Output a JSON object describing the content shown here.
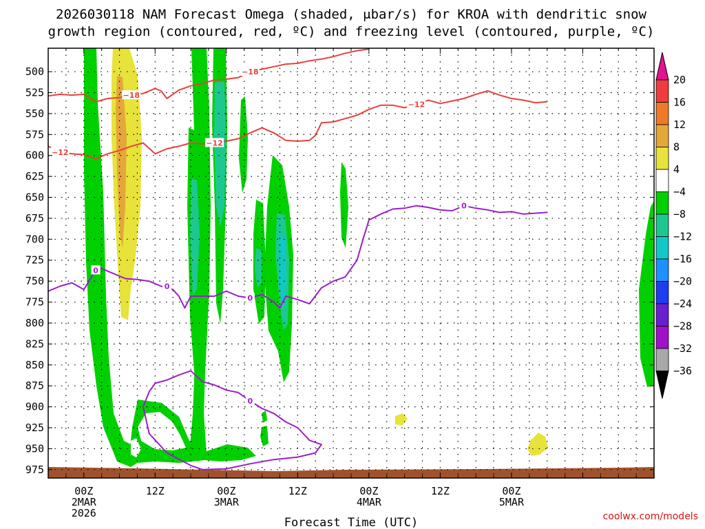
{
  "chart_data": {
    "type": "heatmap",
    "title_line1": "2026030118 NAM Forecast Omega (shaded, μbar/s) for KROA with dendritic snow",
    "title_line2": "growth region (contoured, red, ºC) and freezing level (contoured, purple, ºC)",
    "xlabel": "Forecast Time (UTC)",
    "credit": "coolwx.com/models",
    "x_range_hours": [
      18,
      120
    ],
    "y_range_hpa": [
      472,
      985
    ],
    "y_ticks": [
      500,
      525,
      550,
      575,
      600,
      625,
      650,
      675,
      700,
      725,
      750,
      775,
      800,
      825,
      850,
      875,
      900,
      925,
      950,
      975
    ],
    "x_ticks": [
      {
        "hour": 24,
        "lines": [
          "00Z",
          "2MAR",
          "2026"
        ]
      },
      {
        "hour": 36,
        "lines": [
          "12Z"
        ]
      },
      {
        "hour": 48,
        "lines": [
          "00Z",
          "3MAR"
        ]
      },
      {
        "hour": 60,
        "lines": [
          "12Z"
        ]
      },
      {
        "hour": 72,
        "lines": [
          "00Z",
          "4MAR"
        ]
      },
      {
        "hour": 84,
        "lines": [
          "12Z"
        ]
      },
      {
        "hour": 96,
        "lines": [
          "00Z",
          "5MAR"
        ]
      }
    ],
    "colorbar_labels": [
      "20",
      "16",
      "12",
      "8",
      "4",
      "−4",
      "−8",
      "−12",
      "−16",
      "−20",
      "−24",
      "−28",
      "−32",
      "−36"
    ],
    "colorbar_colors": [
      "#f03c3c",
      "#ee7a28",
      "#e5a63a",
      "#e7e33a",
      "#ffffff",
      "#00d000",
      "#1cc890",
      "#10c8c8",
      "#1e90ff",
      "#1e3cf0",
      "#6a1ed0",
      "#a010c8",
      "#a8a8a8"
    ],
    "contours": [
      {
        "name": "dgz-upper",
        "label": "−18",
        "color": "#e8403a",
        "points": [
          [
            18,
            529
          ],
          [
            20,
            527
          ],
          [
            22,
            528
          ],
          [
            24,
            527
          ],
          [
            26,
            536
          ],
          [
            28,
            532
          ],
          [
            30,
            531
          ],
          [
            32,
            528
          ],
          [
            34,
            526
          ],
          [
            36,
            520
          ],
          [
            37,
            523
          ],
          [
            38,
            532
          ],
          [
            40,
            522
          ],
          [
            42,
            517
          ],
          [
            44,
            514
          ],
          [
            46,
            510
          ],
          [
            48,
            509
          ],
          [
            50,
            507
          ],
          [
            52,
            500
          ],
          [
            54,
            497
          ],
          [
            56,
            494
          ],
          [
            58,
            491
          ],
          [
            60,
            490
          ],
          [
            62,
            487
          ],
          [
            64,
            485
          ],
          [
            66,
            482
          ],
          [
            68,
            478
          ],
          [
            70,
            475
          ],
          [
            72,
            473
          ]
        ],
        "labels_at": [
          [
            32,
            528
          ],
          [
            52,
            500
          ]
        ]
      },
      {
        "name": "dgz-lower",
        "label": "−12",
        "color": "#e8403a",
        "points": [
          [
            18,
            589
          ],
          [
            20,
            596
          ],
          [
            22,
            598
          ],
          [
            24,
            599
          ],
          [
            26,
            604
          ],
          [
            28,
            598
          ],
          [
            30,
            594
          ],
          [
            32,
            589
          ],
          [
            34,
            585
          ],
          [
            36,
            598
          ],
          [
            38,
            592
          ],
          [
            40,
            589
          ],
          [
            42,
            585
          ],
          [
            44,
            586
          ],
          [
            46,
            585
          ],
          [
            48,
            583
          ],
          [
            50,
            580
          ],
          [
            52,
            573
          ],
          [
            54,
            567
          ],
          [
            56,
            573
          ],
          [
            58,
            582
          ],
          [
            60,
            583
          ],
          [
            62,
            582
          ],
          [
            63,
            576
          ],
          [
            64,
            561
          ],
          [
            66,
            560
          ],
          [
            68,
            556
          ],
          [
            70,
            552
          ],
          [
            72,
            545
          ],
          [
            74,
            540
          ],
          [
            76,
            540
          ],
          [
            78,
            543
          ],
          [
            80,
            539
          ],
          [
            82,
            534
          ],
          [
            84,
            538
          ],
          [
            86,
            535
          ],
          [
            88,
            532
          ],
          [
            90,
            527
          ],
          [
            92,
            523
          ],
          [
            94,
            528
          ],
          [
            96,
            532
          ],
          [
            98,
            534
          ],
          [
            100,
            537
          ],
          [
            102,
            536
          ]
        ],
        "labels_at": [
          [
            20,
            596
          ],
          [
            46,
            585
          ],
          [
            80,
            539
          ]
        ]
      },
      {
        "name": "freezing-level",
        "label": "0",
        "color": "#9a1ecc",
        "points": [
          [
            18,
            762
          ],
          [
            20,
            756
          ],
          [
            22,
            752
          ],
          [
            24,
            760
          ],
          [
            26,
            737
          ],
          [
            27,
            735
          ],
          [
            29,
            741
          ],
          [
            31,
            747
          ],
          [
            33,
            748
          ],
          [
            35,
            750
          ],
          [
            37,
            756
          ],
          [
            39,
            760
          ],
          [
            40,
            768
          ],
          [
            41,
            782
          ],
          [
            42,
            768
          ],
          [
            44,
            768
          ],
          [
            46,
            768
          ],
          [
            48,
            762
          ],
          [
            50,
            768
          ],
          [
            52,
            770
          ],
          [
            54,
            766
          ],
          [
            56,
            775
          ],
          [
            57,
            782
          ],
          [
            58,
            768
          ],
          [
            60,
            772
          ],
          [
            62,
            777
          ],
          [
            64,
            758
          ],
          [
            66,
            750
          ],
          [
            68,
            745
          ],
          [
            70,
            725
          ],
          [
            71,
            700
          ],
          [
            72,
            677
          ],
          [
            74,
            670
          ],
          [
            76,
            664
          ],
          [
            78,
            663
          ],
          [
            80,
            660
          ],
          [
            82,
            662
          ],
          [
            84,
            665
          ],
          [
            86,
            666
          ],
          [
            88,
            660
          ],
          [
            90,
            663
          ],
          [
            92,
            665
          ],
          [
            94,
            668
          ],
          [
            96,
            667
          ],
          [
            98,
            670
          ],
          [
            102,
            668
          ]
        ],
        "labels_at": [
          [
            26,
            737
          ],
          [
            38,
            756
          ],
          [
            52,
            770
          ],
          [
            88,
            660
          ]
        ]
      },
      {
        "name": "freezing-level-low",
        "label": "0",
        "color": "#9a1ecc",
        "points": [
          [
            38,
            868
          ],
          [
            40,
            862
          ],
          [
            42,
            857
          ],
          [
            44,
            870
          ],
          [
            46,
            874
          ],
          [
            48,
            880
          ],
          [
            50,
            883
          ],
          [
            52,
            893
          ],
          [
            54,
            902
          ],
          [
            56,
            908
          ],
          [
            58,
            918
          ],
          [
            60,
            925
          ],
          [
            62,
            940
          ],
          [
            64,
            945
          ],
          [
            63,
            955
          ],
          [
            60,
            960
          ],
          [
            56,
            963
          ],
          [
            52,
            968
          ],
          [
            48,
            974
          ],
          [
            44,
            975
          ],
          [
            42,
            970
          ],
          [
            38,
            955
          ],
          [
            35,
            932
          ],
          [
            34,
            900
          ],
          [
            35,
            882
          ],
          [
            36,
            872
          ],
          [
            38,
            868
          ]
        ],
        "labels_at": [
          [
            52,
            893
          ]
        ]
      }
    ]
  }
}
